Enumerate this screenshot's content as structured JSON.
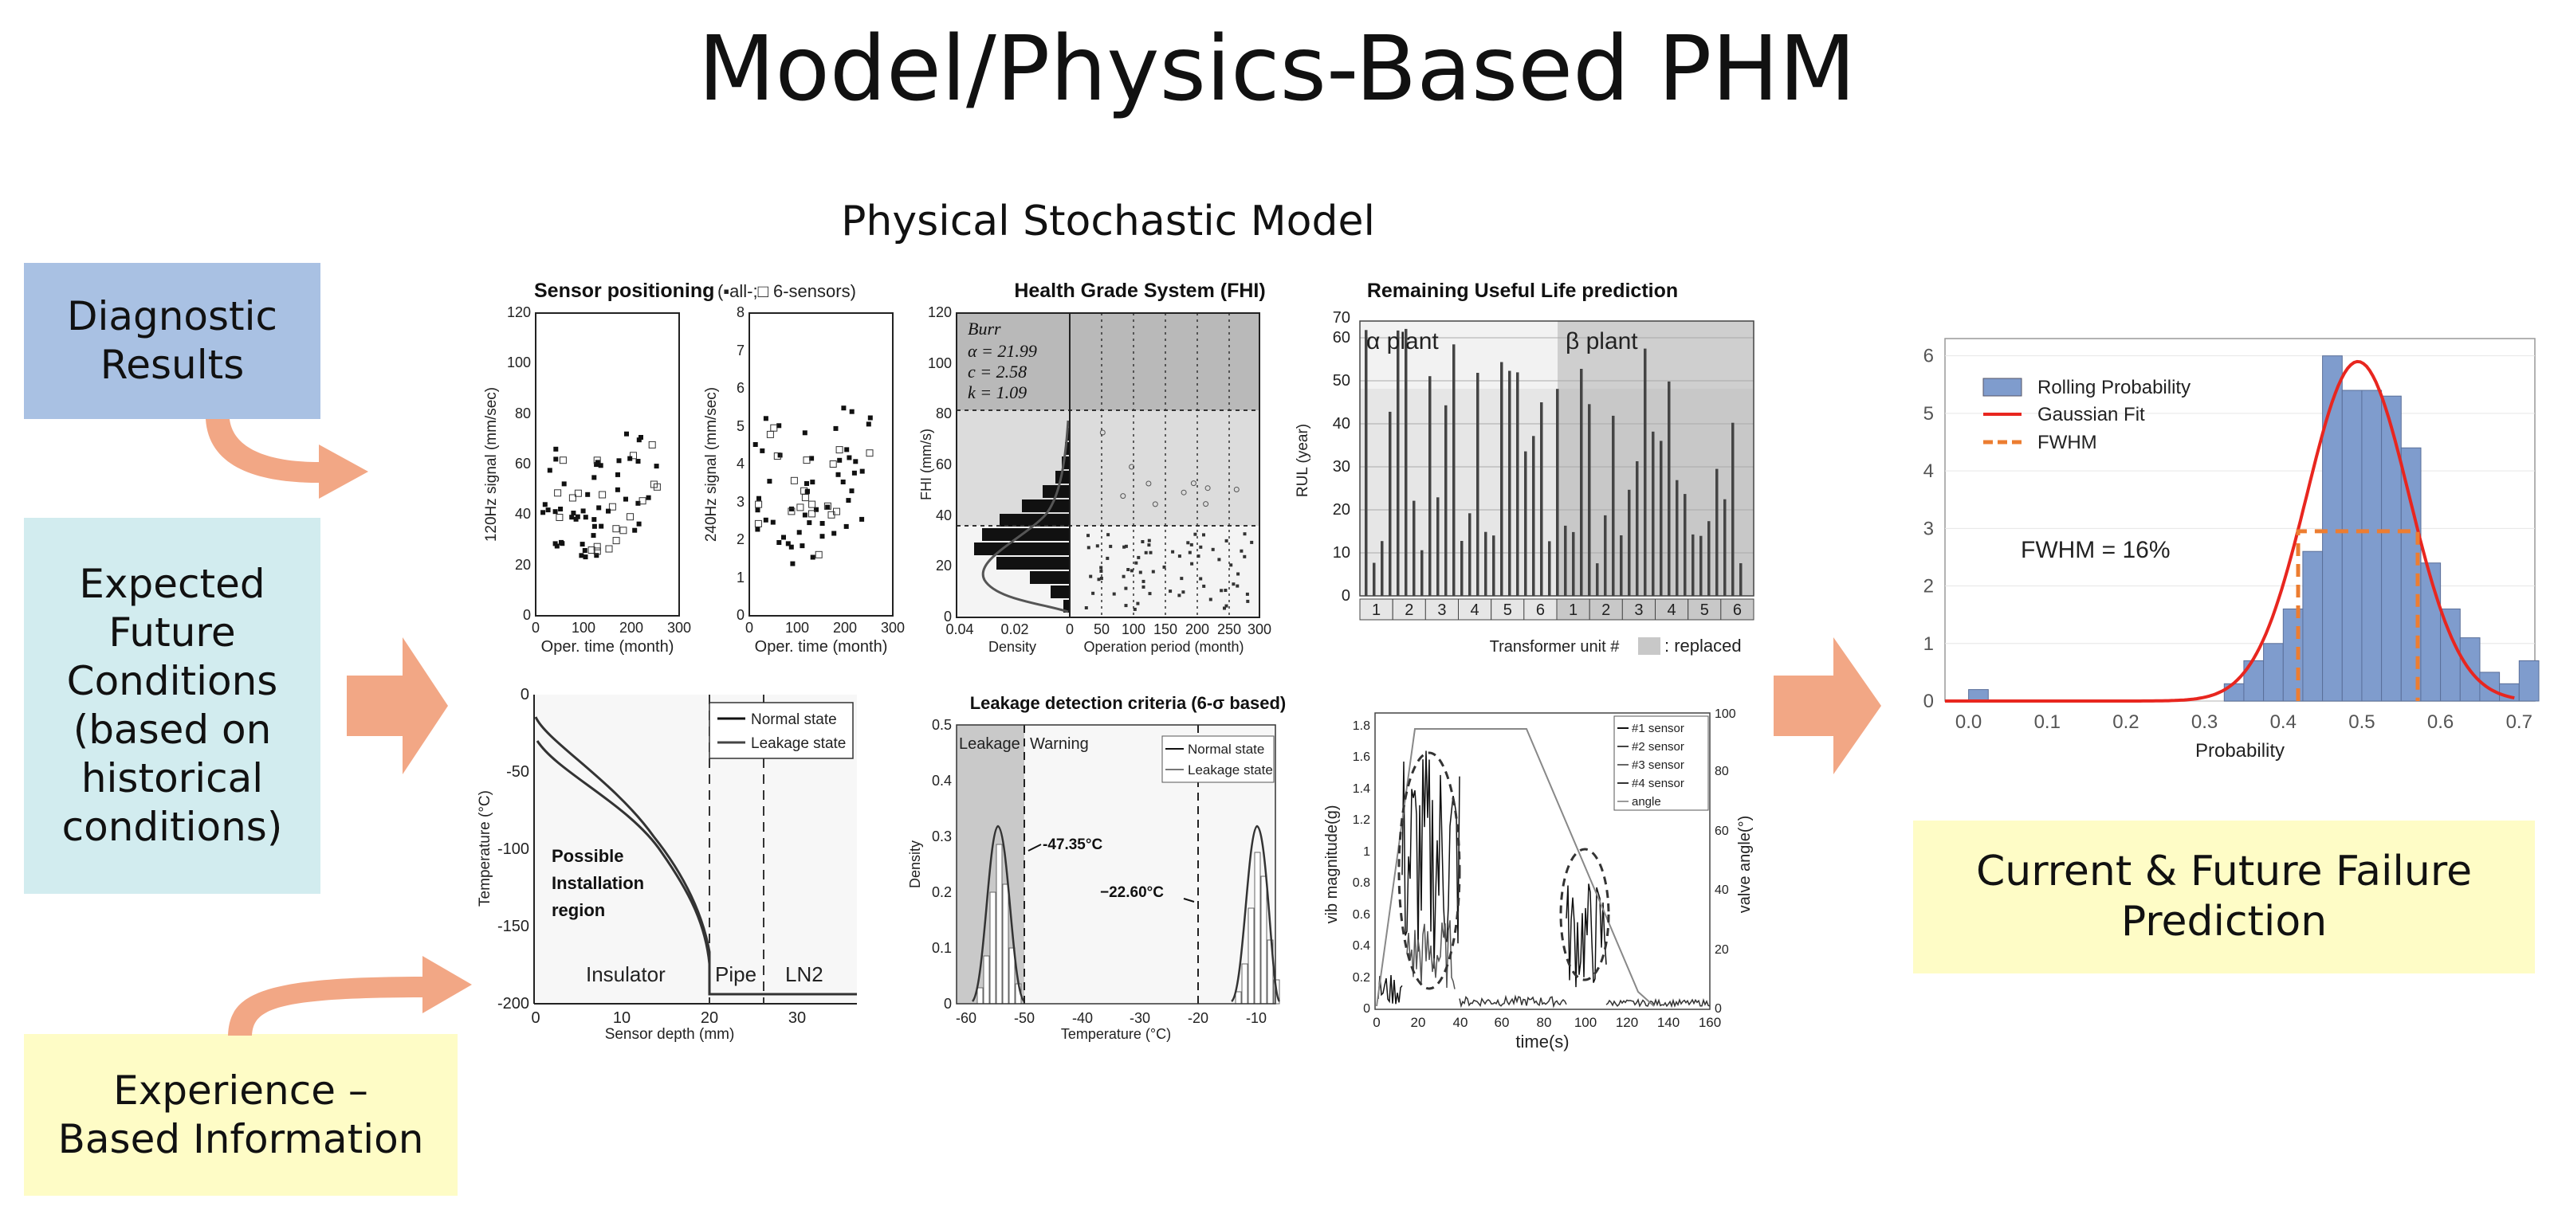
{
  "title": "Model/Physics-Based PHM",
  "subtitle": "Physical Stochastic Model",
  "colors": {
    "blue_box": "#a9c1e3",
    "cyan_box": "#d2ecef",
    "yellow_box": "#fefcc6",
    "arrow": "#f2a785",
    "hist_bar": "#7f9ccd",
    "gauss": "#e8261f",
    "fwhm": "#ec7d31"
  },
  "inputs": {
    "diagnostic": "Diagnostic\nResults",
    "expected": "Expected\nFuture\nConditions\n(based on\nhistorical\nconditions)",
    "experience": "Experience –\nBased Information"
  },
  "output_label": "Current & Future Failure\nPrediction",
  "panels": {
    "sensor": {
      "title": "Sensor positioning",
      "title_suffix": "(▪all-;□ 6-sensors)",
      "left": {
        "ylabel": "120Hz signal (mm/sec)",
        "xlabel": "Oper. time (month)",
        "yticks": [
          "0",
          "20",
          "40",
          "60",
          "80",
          "100",
          "120"
        ],
        "xticks": [
          "0",
          "100",
          "200",
          "300"
        ]
      },
      "right": {
        "ylabel": "240Hz signal (mm/sec)",
        "xlabel": "Oper. time (month)",
        "yticks": [
          "0",
          "1",
          "2",
          "3",
          "4",
          "5",
          "6",
          "7",
          "8"
        ],
        "xticks": [
          "0",
          "100",
          "200",
          "300"
        ]
      }
    },
    "health": {
      "title": "Health Grade System (FHI)",
      "ylabel": "FHI (mm/s)",
      "xlabel_left": "Density",
      "xlabel_right": "Operation period (month)",
      "yticks": [
        "0",
        "20",
        "40",
        "60",
        "80",
        "100",
        "120"
      ],
      "xticks_left": [
        "0.04",
        "0.02",
        "0"
      ],
      "xticks_right": [
        "50",
        "100",
        "150",
        "200",
        "250",
        "300"
      ],
      "legend": [
        "Burr",
        "α = 21.99",
        "c = 2.58",
        "k = 1.09"
      ]
    },
    "rul": {
      "title": "Remaining Useful Life prediction",
      "ylabel": "RUL (year)",
      "xlabel": "Transformer unit #",
      "replaced": ": replaced",
      "alpha": "α plant",
      "beta": "β plant",
      "yticks": [
        "0",
        "10",
        "20",
        "30",
        "40",
        "50",
        "60",
        "70"
      ],
      "units": [
        "1",
        "2",
        "3",
        "4",
        "5",
        "6",
        "1",
        "2",
        "3",
        "4",
        "5",
        "6"
      ]
    },
    "temp": {
      "ylabel": "Temperature (°C)",
      "xlabel": "Sensor depth (mm)",
      "yticks": [
        "0",
        "-50",
        "-100",
        "-150",
        "-200"
      ],
      "xticks": [
        "0",
        "10",
        "20",
        "30"
      ],
      "legend": [
        "Normal state",
        "Leakage state"
      ],
      "region": [
        "Possible",
        "Installation",
        "region"
      ],
      "zones": [
        "Insulator",
        "Pipe",
        "LN2"
      ]
    },
    "leak": {
      "title": "Leakage detection criteria (6-σ based)",
      "ylabel": "Density",
      "xlabel": "Temperature (°C)",
      "yticks": [
        "0",
        "0.1",
        "0.2",
        "0.3",
        "0.4",
        "0.5"
      ],
      "xticks": [
        "-60",
        "-50",
        "-40",
        "-30",
        "-20",
        "-10"
      ],
      "legend": [
        "Normal state",
        "Leakage state"
      ],
      "leakage": "Leakage",
      "warning": "Warning",
      "mark1": "-47.35°C",
      "mark2": "−22.60°C"
    },
    "vib": {
      "ylabel_left": "vib magnitude(g)",
      "ylabel_right": "valve angle(°)",
      "xlabel": "time(s)",
      "yticks_left": [
        "0",
        "0.2",
        "0.4",
        "0.6",
        "0.8",
        "1",
        "1.2",
        "1.4",
        "1.6",
        "1.8"
      ],
      "yticks_right": [
        "0",
        "20",
        "40",
        "60",
        "80",
        "100"
      ],
      "xticks": [
        "0",
        "20",
        "40",
        "60",
        "80",
        "100",
        "120",
        "140",
        "160"
      ],
      "legend": [
        "#1 sensor",
        "#2 sensor",
        "#3 sensor",
        "#4 sensor",
        "angle"
      ]
    }
  },
  "chart_data": {
    "type": "bar",
    "xlabel": "Probability",
    "ylabel": "",
    "xlim": [
      -0.03,
      0.72
    ],
    "ylim": [
      0,
      6.3
    ],
    "xticks": [
      "0.0",
      "0.1",
      "0.2",
      "0.3",
      "0.4",
      "0.5",
      "0.6",
      "0.7"
    ],
    "yticks": [
      "0",
      "1",
      "2",
      "3",
      "4",
      "5",
      "6"
    ],
    "bin_width": 0.025,
    "series": [
      {
        "name": "Rolling Probability",
        "kind": "histogram",
        "bins": [
          {
            "x0": 0.0,
            "y": 0.2
          },
          {
            "x0": 0.325,
            "y": 0.3
          },
          {
            "x0": 0.35,
            "y": 0.7
          },
          {
            "x0": 0.375,
            "y": 1.0
          },
          {
            "x0": 0.4,
            "y": 1.6
          },
          {
            "x0": 0.425,
            "y": 2.6
          },
          {
            "x0": 0.45,
            "y": 6.0
          },
          {
            "x0": 0.475,
            "y": 5.4
          },
          {
            "x0": 0.5,
            "y": 5.4
          },
          {
            "x0": 0.525,
            "y": 5.3
          },
          {
            "x0": 0.55,
            "y": 4.4
          },
          {
            "x0": 0.575,
            "y": 2.4
          },
          {
            "x0": 0.6,
            "y": 1.6
          },
          {
            "x0": 0.625,
            "y": 1.1
          },
          {
            "x0": 0.65,
            "y": 0.5
          },
          {
            "x0": 0.675,
            "y": 0.3
          },
          {
            "x0": 0.7,
            "y": 0.7
          }
        ]
      },
      {
        "name": "Gaussian Fit",
        "kind": "line",
        "mean": 0.495,
        "sigma": 0.065,
        "peak": 5.9
      },
      {
        "name": "FWHM",
        "kind": "dashed",
        "x": [
          0.419,
          0.419,
          0.571,
          0.571
        ],
        "y": [
          0,
          2.95,
          2.95,
          0
        ]
      }
    ],
    "annotation": "FWHM = 16%",
    "legend_position": "top-left"
  }
}
